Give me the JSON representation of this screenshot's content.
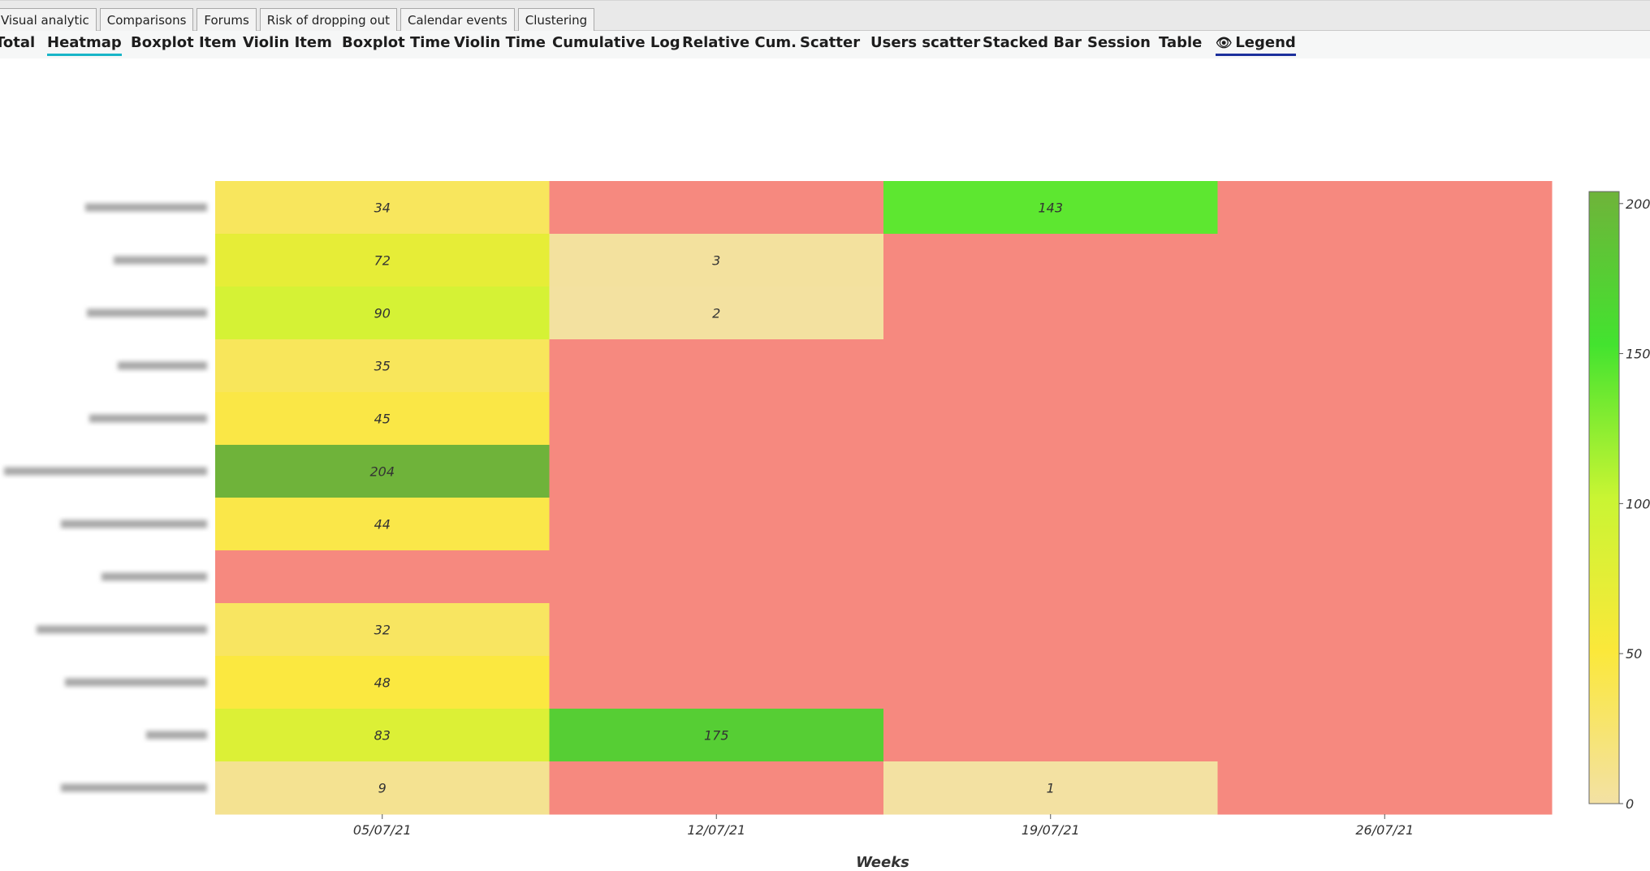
{
  "tabs": [
    "Visual analytic",
    "Comparisons",
    "Forums",
    "Risk of dropping out",
    "Calendar events",
    "Clustering"
  ],
  "subnav": [
    "Total",
    "Heatmap",
    "Boxplot Item",
    "Violin Item",
    "Boxplot Time",
    "Violin Time",
    "Cumulative Log",
    "Relative Cum.",
    "Scatter",
    "Users scatter",
    "Stacked Bar",
    "Session",
    "Table",
    "Legend"
  ],
  "active_subnav": "Heatmap",
  "legend_icon": "eye-icon",
  "colors": {
    "accent": "#19b5c8",
    "legend_underline": "#1c2f9c",
    "empty_cell": "#f6897f"
  },
  "chart_data": {
    "type": "heatmap",
    "xlabel": "Weeks",
    "x": [
      "05/07/21",
      "12/07/21",
      "19/07/21",
      "26/07/21"
    ],
    "rows": 12,
    "values": [
      [
        34,
        null,
        143,
        null
      ],
      [
        72,
        3,
        null,
        null
      ],
      [
        90,
        2,
        null,
        null
      ],
      [
        35,
        null,
        null,
        null
      ],
      [
        45,
        null,
        null,
        null
      ],
      [
        204,
        null,
        null,
        null
      ],
      [
        44,
        null,
        null,
        null
      ],
      [
        null,
        null,
        null,
        null
      ],
      [
        32,
        null,
        null,
        null
      ],
      [
        48,
        null,
        null,
        null
      ],
      [
        83,
        175,
        null,
        null
      ],
      [
        9,
        null,
        1,
        null
      ]
    ],
    "colorscale": {
      "min": 0,
      "max": 204,
      "ticks": [
        0,
        50,
        100,
        150,
        200
      ],
      "stops": [
        "#f3e1a4",
        "#fbe83a",
        "#c9f533",
        "#43e32f",
        "#6fb33a"
      ]
    },
    "grid": false,
    "legend": "right"
  }
}
